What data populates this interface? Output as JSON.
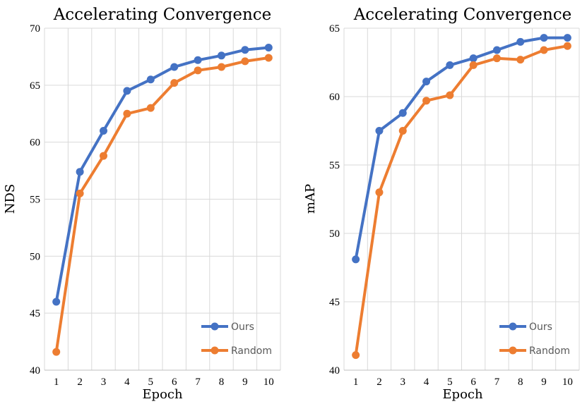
{
  "chart_data": [
    {
      "type": "line",
      "title": "Accelerating Convergence",
      "xlabel": "Epoch",
      "ylabel": "NDS",
      "categories": [
        "1",
        "2",
        "3",
        "4",
        "5",
        "6",
        "7",
        "8",
        "9",
        "10"
      ],
      "ylim": [
        40,
        70
      ],
      "yticks": [
        40,
        45,
        50,
        55,
        60,
        65,
        70
      ],
      "grid": true,
      "legend_position": "bottom-right",
      "series": [
        {
          "name": "Ours",
          "color": "#4472c4",
          "values": [
            46.0,
            57.4,
            61.0,
            64.5,
            65.5,
            66.6,
            67.2,
            67.6,
            68.1,
            68.3
          ]
        },
        {
          "name": "Random",
          "color": "#ed7d31",
          "values": [
            41.6,
            55.5,
            58.8,
            62.5,
            63.0,
            65.2,
            66.3,
            66.6,
            67.1,
            67.4
          ]
        }
      ]
    },
    {
      "type": "line",
      "title": "Accelerating Convergence",
      "xlabel": "Epoch",
      "ylabel": "mAP",
      "categories": [
        "1",
        "2",
        "3",
        "4",
        "5",
        "6",
        "7",
        "8",
        "9",
        "10"
      ],
      "ylim": [
        40,
        65
      ],
      "yticks": [
        40,
        45,
        50,
        55,
        60,
        65
      ],
      "grid": true,
      "legend_position": "bottom-right",
      "series": [
        {
          "name": "Ours",
          "color": "#4472c4",
          "values": [
            48.1,
            57.5,
            58.8,
            61.1,
            62.3,
            62.8,
            63.4,
            64.0,
            64.3,
            64.3
          ]
        },
        {
          "name": "Random",
          "color": "#ed7d31",
          "values": [
            41.1,
            53.0,
            57.5,
            59.7,
            60.1,
            62.3,
            62.8,
            62.7,
            63.4,
            63.7
          ]
        }
      ]
    }
  ]
}
